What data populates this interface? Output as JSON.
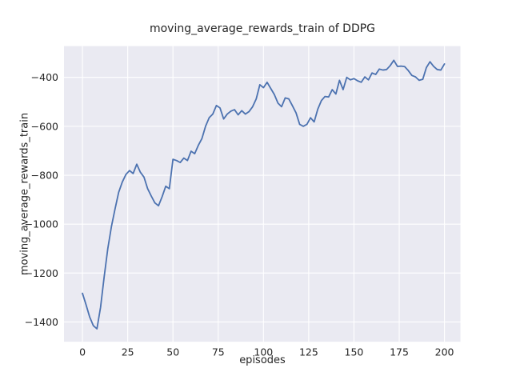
{
  "figure": {
    "background": "#ffffff"
  },
  "chart_data": {
    "type": "line",
    "title": "moving_average_rewards_train of DDPG",
    "xlabel": "episodes",
    "ylabel": "moving_average_rewards_train",
    "legend": null,
    "grid": true,
    "plot_background": "#eaeaf2",
    "grid_color": "#ffffff",
    "line_color": "#4c72b0",
    "text_color": "#262626",
    "xlim": [
      -10.2,
      208.8
    ],
    "ylim": [
      -1481,
      -272
    ],
    "xticks": {
      "values": [
        0,
        25,
        50,
        75,
        100,
        125,
        150,
        175,
        200
      ],
      "labels": [
        "0",
        "25",
        "50",
        "75",
        "100",
        "125",
        "150",
        "175",
        "200"
      ]
    },
    "yticks": {
      "values": [
        -400,
        -600,
        -800,
        -1000,
        -1200,
        -1400
      ],
      "labels": [
        "−400",
        "−600",
        "−800",
        "−1000",
        "−1200",
        "−1400"
      ]
    },
    "x": [
      0,
      2,
      4,
      6,
      8,
      10,
      12,
      14,
      16,
      18,
      20,
      22,
      24,
      26,
      28,
      30,
      32,
      34,
      36,
      38,
      40,
      42,
      44,
      46,
      48,
      50,
      52,
      54,
      56,
      58,
      60,
      62,
      64,
      66,
      68,
      70,
      72,
      74,
      76,
      78,
      80,
      82,
      84,
      86,
      88,
      90,
      92,
      94,
      96,
      98,
      100,
      102,
      104,
      106,
      108,
      110,
      112,
      114,
      116,
      118,
      120,
      122,
      124,
      126,
      128,
      130,
      132,
      134,
      136,
      138,
      140,
      142,
      144,
      146,
      148,
      150,
      152,
      154,
      156,
      158,
      160,
      162,
      164,
      166,
      168,
      170,
      172,
      174,
      176,
      178,
      180,
      182,
      184,
      186,
      188,
      190,
      192,
      194,
      196,
      198,
      200
    ],
    "values": [
      -1283,
      -1330,
      -1380,
      -1415,
      -1428,
      -1340,
      -1215,
      -1100,
      -1010,
      -938,
      -870,
      -828,
      -797,
      -781,
      -793,
      -755,
      -788,
      -808,
      -855,
      -885,
      -913,
      -925,
      -888,
      -845,
      -855,
      -735,
      -740,
      -748,
      -730,
      -740,
      -702,
      -712,
      -678,
      -650,
      -600,
      -565,
      -550,
      -515,
      -525,
      -570,
      -550,
      -538,
      -532,
      -553,
      -536,
      -550,
      -540,
      -520,
      -488,
      -430,
      -442,
      -420,
      -445,
      -470,
      -505,
      -520,
      -484,
      -488,
      -516,
      -545,
      -592,
      -600,
      -592,
      -565,
      -582,
      -530,
      -495,
      -478,
      -480,
      -450,
      -468,
      -412,
      -450,
      -400,
      -410,
      -405,
      -414,
      -420,
      -398,
      -410,
      -382,
      -388,
      -366,
      -370,
      -368,
      -352,
      -330,
      -355,
      -354,
      -356,
      -372,
      -392,
      -398,
      -412,
      -408,
      -360,
      -336,
      -355,
      -368,
      -370,
      -345
    ]
  }
}
